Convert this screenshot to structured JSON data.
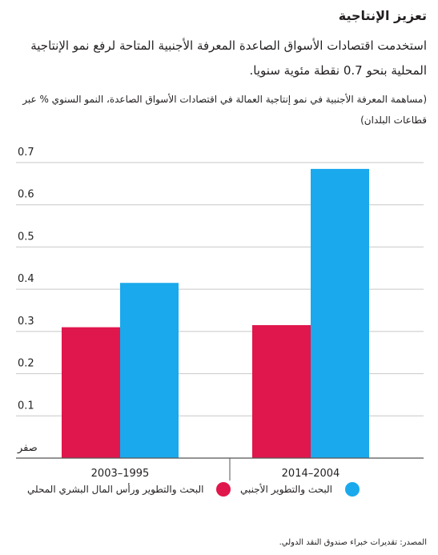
{
  "title": "تعزيز الإنتاجية",
  "subtitle": "استخدمت اقتصادات الأسواق الصاعدة المعرفة الأجنبية المتاحة لرفع نمو الإنتاجية المحلية بنحو 0.7 نقطة مئوية سنويا.",
  "note": "(مساهمة المعرفة الأجنبية في نمو إنتاجية العمالة في اقتصادات الأسواق الصاعدة، النمو السنوي % عبر قطاعات البلدان)",
  "source": "المصدر: تقديرات خبراء صندوق النقد الدولي.",
  "colors": {
    "domestic": "#e0174c",
    "foreign": "#1aa9ec",
    "grid": "#c8c8c8",
    "axis": "#555555"
  },
  "chart_data": {
    "type": "bar",
    "categories": [
      "2003–1995",
      "2014–2004"
    ],
    "series": [
      {
        "name": "البحث والتطوير ورأس المال البشري المحلي",
        "color": "#e0174c",
        "values": [
          0.31,
          0.315
        ]
      },
      {
        "name": "البحث والتطوير الأجنبي",
        "color": "#1aa9ec",
        "values": [
          0.415,
          0.685
        ]
      }
    ],
    "ylim": [
      0,
      0.7
    ],
    "yticks": [
      {
        "value": 0,
        "label": "صفر"
      },
      {
        "value": 0.1,
        "label": "0.1"
      },
      {
        "value": 0.2,
        "label": "0.2"
      },
      {
        "value": 0.3,
        "label": "0.3"
      },
      {
        "value": 0.4,
        "label": "0.4"
      },
      {
        "value": 0.5,
        "label": "0.5"
      },
      {
        "value": 0.6,
        "label": "0.6"
      },
      {
        "value": 0.7,
        "label": "0.7"
      }
    ],
    "grid": true,
    "legend_position": "bottom"
  }
}
